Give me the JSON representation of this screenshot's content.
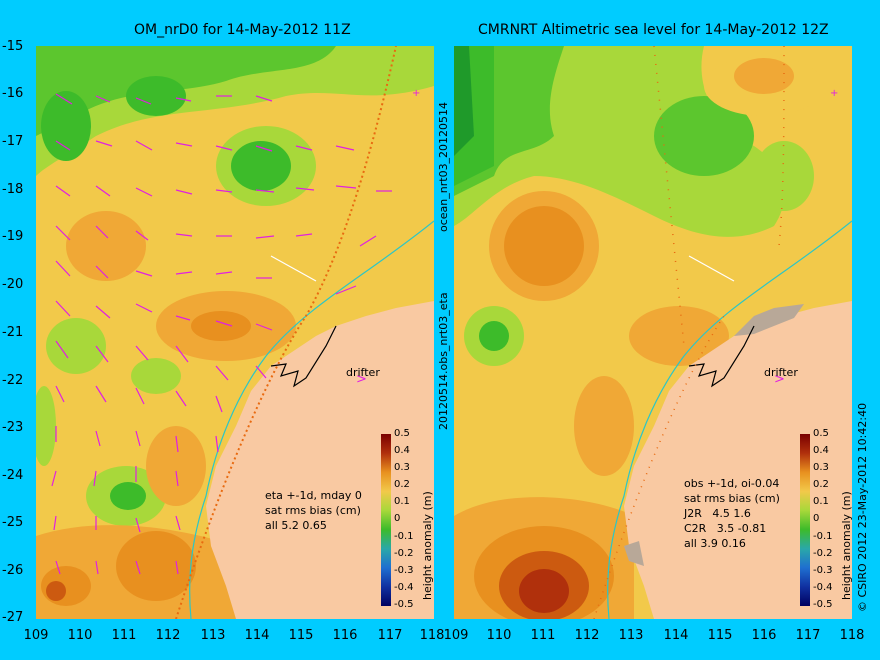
{
  "left_panel": {
    "title": "OM_nrD0 for 14-May-2012 11Z",
    "annotation": "eta +-1d, mday 0\nsat rms bias (cm)\nall 5.2 0.65",
    "drifter_label": "drifter"
  },
  "right_panel": {
    "title": "CMRNRT Altimetric sea level  for 14-May-2012 12Z",
    "annotation": "obs +-1d, oi-0.04\nsat rms bias (cm)\nJ2R   4.5 1.6\nC2R   3.5 -0.81\nall 3.9 0.16",
    "drifter_label": "drifter"
  },
  "y_axis_ticks": [
    "-15",
    "-16",
    "-17",
    "-18",
    "-19",
    "-20",
    "-21",
    "-22",
    "-23",
    "-24",
    "-25",
    "-26",
    "-27"
  ],
  "x_axis_ticks": [
    "109",
    "110",
    "111",
    "112",
    "113",
    "114",
    "115",
    "116",
    "117",
    "118"
  ],
  "colorbar": {
    "label": "height anomaly (m)",
    "ticks": [
      "0.5",
      "0.4",
      "0.3",
      "0.2",
      "0.1",
      "0",
      "-0.1",
      "-0.2",
      "-0.3",
      "-0.4",
      "-0.5"
    ]
  },
  "side_labels": {
    "file_label_top": "ocean_nrt03_20120514",
    "file_label_bottom": "20120514.obs_nrt03_eta",
    "copyright": "© CSIRO 2012   23-May-2012 10:42:40"
  },
  "colors": {
    "background": "#00ccff",
    "land": "#f9c9a2",
    "green": "#3dbb2a",
    "orange": "#e8901f",
    "vectors": "#e020e0"
  }
}
